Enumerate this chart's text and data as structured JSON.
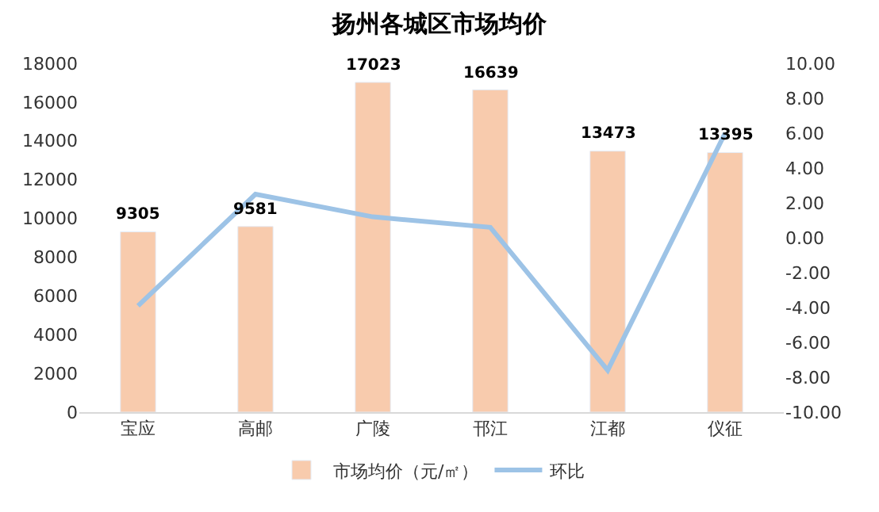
{
  "chart_data": {
    "type": "bar",
    "title": "扬州各城区市场均价",
    "categories": [
      "宝应",
      "高邮",
      "广陵",
      "邗江",
      "江都",
      "仪征"
    ],
    "series": [
      {
        "name": "市场均价（元/㎡）",
        "color": "#f8cbad",
        "values": [
          9305,
          9581,
          17023,
          16639,
          13473,
          13395
        ],
        "value_labels": [
          "9305",
          "9581",
          "17023",
          "16639",
          "13473",
          "13395"
        ]
      },
      {
        "name": "环比",
        "type": "line",
        "axis": "y2",
        "color": "#9dc3e6",
        "values": [
          -3.9,
          2.5,
          1.2,
          0.6,
          -7.6,
          6.0
        ]
      }
    ],
    "ylim": [
      0,
      18000
    ],
    "yticks": [
      0,
      2000,
      4000,
      6000,
      8000,
      10000,
      12000,
      14000,
      16000,
      18000
    ],
    "y2lim": [
      -10,
      10
    ],
    "y2ticks": [
      {
        "value": -10,
        "label": "-10.00"
      },
      {
        "value": -8,
        "label": "-8.00"
      },
      {
        "value": -6,
        "label": "-6.00"
      },
      {
        "value": -4,
        "label": "-4.00"
      },
      {
        "value": -2,
        "label": "-2.00"
      },
      {
        "value": 0,
        "label": "0.00"
      },
      {
        "value": 2,
        "label": "2.00"
      },
      {
        "value": 4,
        "label": "4.00"
      },
      {
        "value": 6,
        "label": "6.00"
      },
      {
        "value": 8,
        "label": "8.00"
      },
      {
        "value": 10,
        "label": "10.00"
      }
    ],
    "legend": "bottom",
    "marker": "none",
    "line_style": "solid"
  }
}
